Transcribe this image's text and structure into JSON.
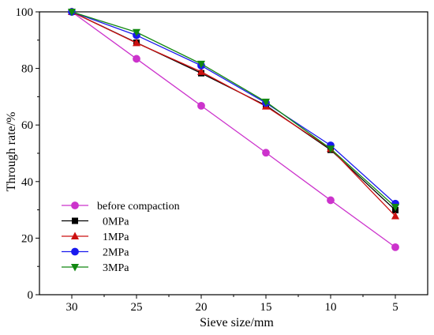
{
  "chart_data": {
    "type": "line",
    "xlabel": "Sieve size/mm",
    "ylabel": "Through rate/%",
    "x_tick_labels": [
      "30",
      "25",
      "20",
      "15",
      "10",
      "5"
    ],
    "y_tick_labels": [
      "0",
      "20",
      "40",
      "60",
      "80",
      "100"
    ],
    "x": [
      30,
      25,
      20,
      15,
      10,
      5
    ],
    "xlim": [
      32.5,
      2.5
    ],
    "ylim": [
      0,
      100
    ],
    "x_reversed": true,
    "grid": false,
    "legend_position": "bottom-left",
    "series": [
      {
        "name": "before compaction",
        "color": "#cc33cc",
        "marker": "circle",
        "values": [
          100,
          83.4,
          66.8,
          50.2,
          33.4,
          16.8
        ]
      },
      {
        "name": "0MPa",
        "color": "#000000",
        "marker": "square",
        "values": [
          100,
          89.1,
          78.3,
          66.9,
          51.2,
          29.9
        ]
      },
      {
        "name": "1MPa",
        "color": "#cc1111",
        "marker": "triangle-up",
        "values": [
          100,
          89.0,
          78.8,
          66.6,
          51.6,
          27.8
        ]
      },
      {
        "name": "2MPa",
        "color": "#1a1aee",
        "marker": "circle",
        "values": [
          100,
          91.7,
          81.0,
          67.8,
          52.8,
          32.2
        ]
      },
      {
        "name": "3MPa",
        "color": "#118811",
        "marker": "triangle-down",
        "values": [
          100,
          92.8,
          81.6,
          68.2,
          51.6,
          31.0
        ]
      }
    ]
  }
}
